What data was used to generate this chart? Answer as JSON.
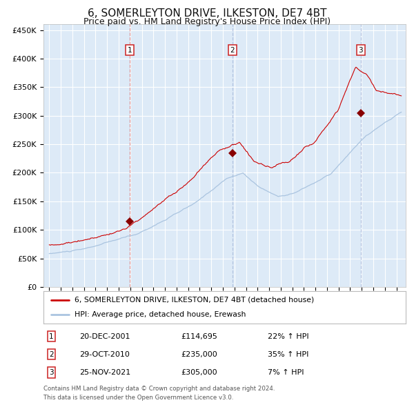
{
  "title": "6, SOMERLEYTON DRIVE, ILKESTON, DE7 4BT",
  "subtitle": "Price paid vs. HM Land Registry's House Price Index (HPI)",
  "background_color": "#ffffff",
  "plot_bg_color": "#ddeaf7",
  "grid_color": "#ffffff",
  "hpi_line_color": "#aac4e0",
  "price_line_color": "#cc0000",
  "sale_marker_color": "#880000",
  "vline_color1": "#dd8888",
  "vline_color2": "#aabbdd",
  "ylim": [
    0,
    460000
  ],
  "yticks": [
    0,
    50000,
    100000,
    150000,
    200000,
    250000,
    300000,
    350000,
    400000,
    450000
  ],
  "ytick_labels": [
    "£0",
    "£50K",
    "£100K",
    "£150K",
    "£200K",
    "£250K",
    "£300K",
    "£350K",
    "£400K",
    "£450K"
  ],
  "sales": [
    {
      "date_num": 2001.97,
      "price": 114695,
      "label": "1"
    },
    {
      "date_num": 2010.83,
      "price": 235000,
      "label": "2"
    },
    {
      "date_num": 2021.9,
      "price": 305000,
      "label": "3"
    }
  ],
  "sale_dates_str": [
    "20-DEC-2001",
    "29-OCT-2010",
    "25-NOV-2021"
  ],
  "sale_prices_str": [
    "£114,695",
    "£235,000",
    "£305,000"
  ],
  "sale_hpi_str": [
    "22% ↑ HPI",
    "35% ↑ HPI",
    "7% ↑ HPI"
  ],
  "legend_line1": "6, SOMERLEYTON DRIVE, ILKESTON, DE7 4BT (detached house)",
  "legend_line2": "HPI: Average price, detached house, Erewash",
  "footer1": "Contains HM Land Registry data © Crown copyright and database right 2024.",
  "footer2": "This data is licensed under the Open Government Licence v3.0."
}
